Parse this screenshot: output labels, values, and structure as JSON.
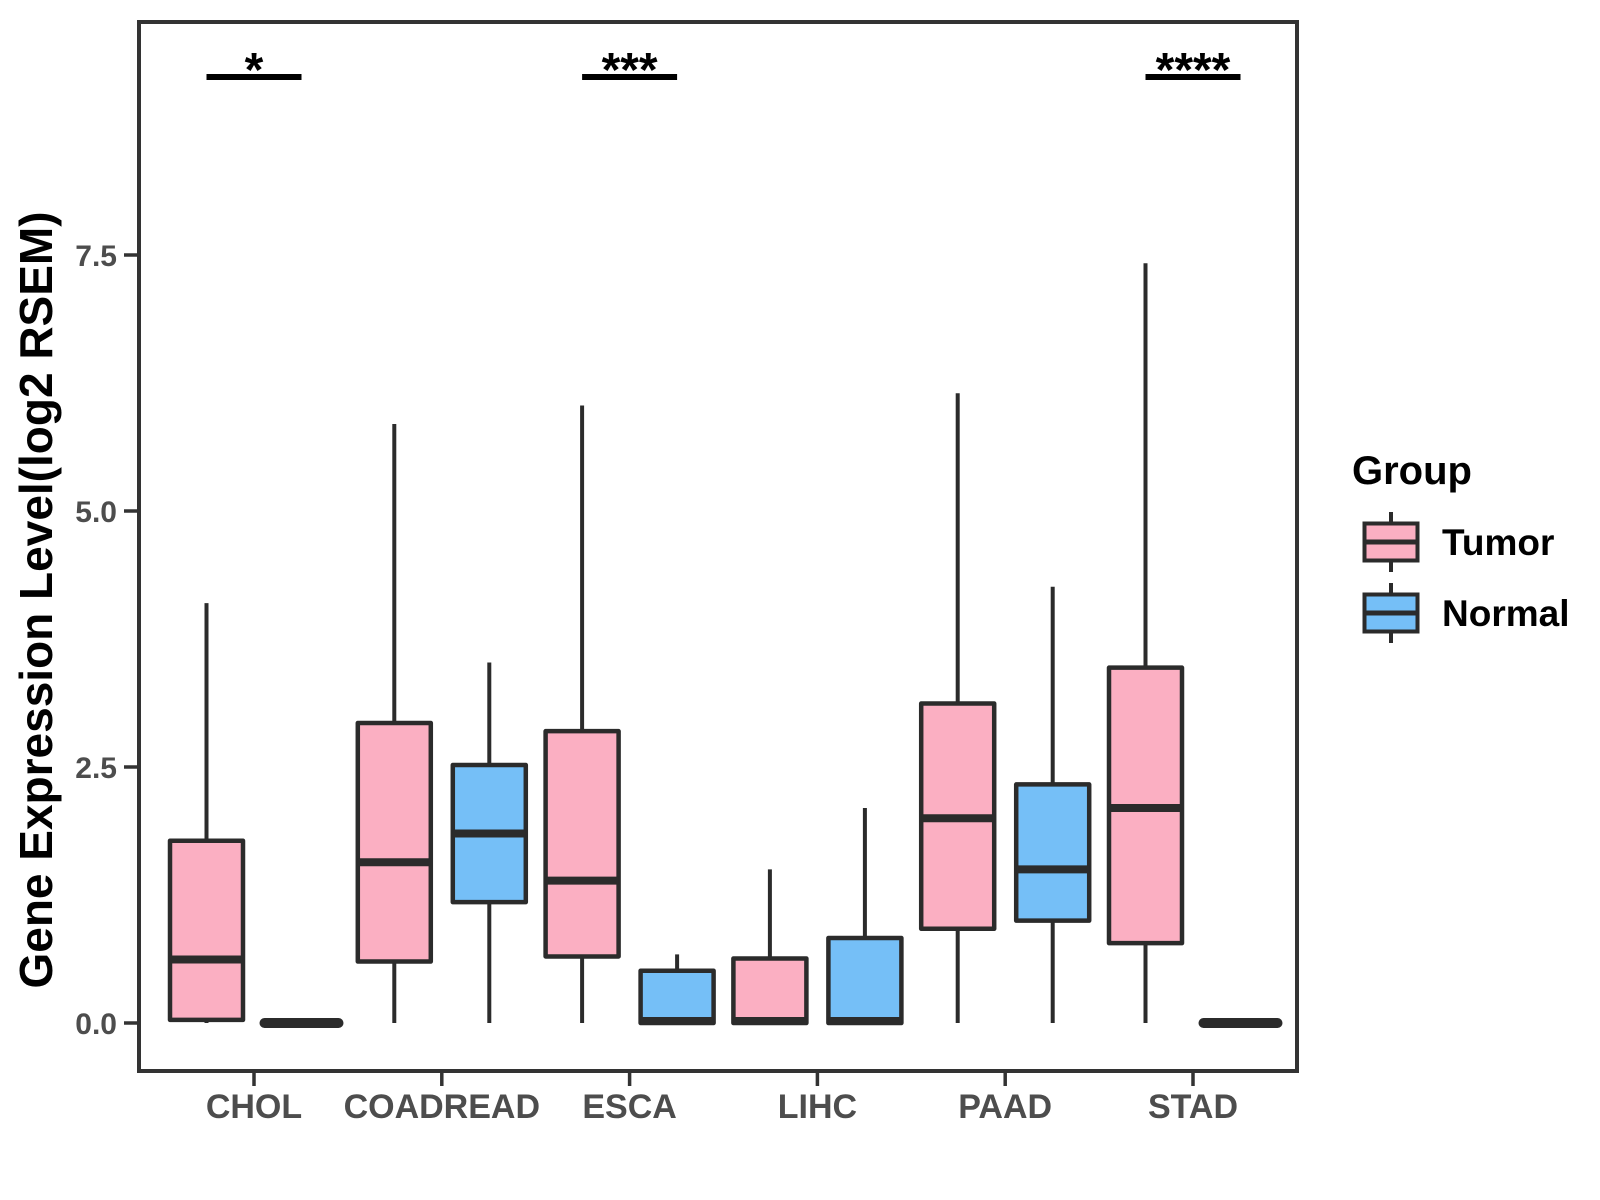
{
  "figure": {
    "background_color": "#ffffff"
  },
  "chart_data": {
    "type": "boxplot",
    "title": "",
    "xlabel": "",
    "ylabel": "Gene Expression Level(log2 RSEM)",
    "categories": [
      "CHOL",
      "COADREAD",
      "ESCA",
      "LIHC",
      "PAAD",
      "STAD"
    ],
    "y_ticks": [
      0.0,
      2.5,
      5.0,
      7.5
    ],
    "y_tick_labels": [
      "0.0",
      "2.5",
      "5.0",
      "7.5"
    ],
    "ylim": [
      -0.47,
      9.78
    ],
    "grid": false,
    "legend": {
      "title": "Group",
      "position": "right",
      "entries": [
        {
          "label": "Tumor",
          "color": "#FBAFC2"
        },
        {
          "label": "Normal",
          "color": "#75BFF7"
        }
      ]
    },
    "series": [
      {
        "name": "Tumor",
        "color": "#FBAFC2",
        "boxes": [
          {
            "category": "CHOL",
            "min": 0,
            "q1": 0.03,
            "median": 0.62,
            "q3": 1.78,
            "max": 4.1
          },
          {
            "category": "COADREAD",
            "min": 0,
            "q1": 0.6,
            "median": 1.57,
            "q3": 2.93,
            "max": 5.85
          },
          {
            "category": "ESCA",
            "min": 0,
            "q1": 0.65,
            "median": 1.39,
            "q3": 2.85,
            "max": 6.03
          },
          {
            "category": "LIHC",
            "min": 0,
            "q1": 0.0,
            "median": 0.02,
            "q3": 0.63,
            "max": 1.5
          },
          {
            "category": "PAAD",
            "min": 0,
            "q1": 0.92,
            "median": 2.0,
            "q3": 3.12,
            "max": 6.15
          },
          {
            "category": "STAD",
            "min": 0,
            "q1": 0.78,
            "median": 2.1,
            "q3": 3.47,
            "max": 7.42
          }
        ]
      },
      {
        "name": "Normal",
        "color": "#75BFF7",
        "boxes": [
          {
            "category": "CHOL",
            "min": 0,
            "q1": 0.0,
            "median": 0.0,
            "q3": 0.0,
            "max": 0.0
          },
          {
            "category": "COADREAD",
            "min": 0,
            "q1": 1.18,
            "median": 1.85,
            "q3": 2.52,
            "max": 3.52
          },
          {
            "category": "ESCA",
            "min": 0,
            "q1": 0.0,
            "median": 0.02,
            "q3": 0.51,
            "max": 0.67
          },
          {
            "category": "LIHC",
            "min": 0,
            "q1": 0.0,
            "median": 0.02,
            "q3": 0.83,
            "max": 2.1
          },
          {
            "category": "PAAD",
            "min": 0,
            "q1": 1.0,
            "median": 1.5,
            "q3": 2.33,
            "max": 4.26
          },
          {
            "category": "STAD",
            "min": 0,
            "q1": 0.0,
            "median": 0.0,
            "q3": 0.0,
            "max": 0.0
          }
        ]
      }
    ],
    "annotations": [
      {
        "category": "CHOL",
        "text": "*"
      },
      {
        "category": "ESCA",
        "text": "***"
      },
      {
        "category": "STAD",
        "text": "****"
      }
    ],
    "style": {
      "tumor_color": "#FBAFC2",
      "normal_color": "#75BFF7",
      "line_color": "#2b2b2b",
      "panel_border_color": "#333333",
      "tick_label_color": "#4d4d4d",
      "axis_title_color": "#000000",
      "annotation_color": "#000000",
      "legend_text_color": "#000000"
    }
  }
}
